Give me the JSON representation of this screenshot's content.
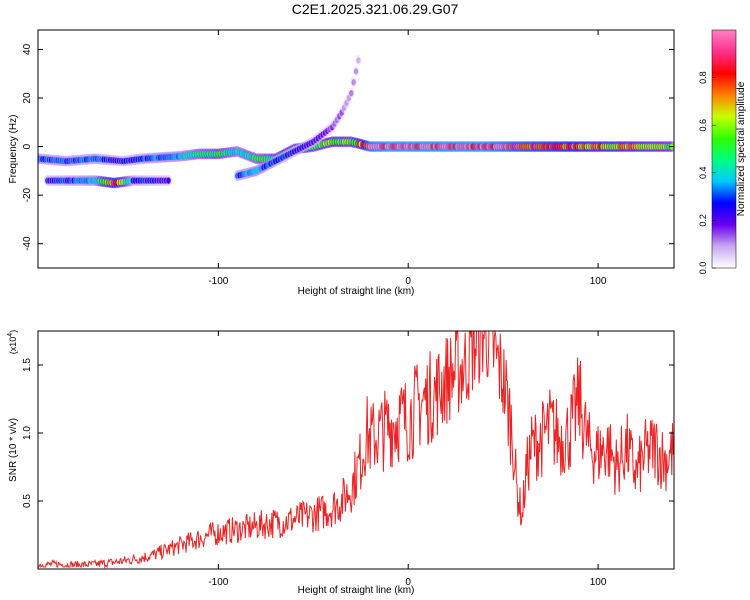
{
  "title": "C2E1.2025.321.06.29.G07",
  "colors": {
    "snr_line": "#ee2222",
    "axis": "#000000",
    "background": "#ffffff"
  },
  "chart_data": [
    {
      "type": "heatmap",
      "name": "spectrogram",
      "title": "C2E1.2025.321.06.29.G07",
      "xlabel": "Height of straight line (km)",
      "ylabel": "Frequency (Hz)",
      "xlim": [
        -195,
        140
      ],
      "ylim": [
        -50,
        48
      ],
      "xticks": [
        -100,
        0,
        100
      ],
      "xtick_labels": [
        "-100",
        "0",
        "100"
      ],
      "yticks": [
        -40,
        -20,
        0,
        20,
        40
      ],
      "ytick_labels": [
        "-40",
        "-20",
        "0",
        "20",
        "40"
      ],
      "colorbar": {
        "label": "Normalized spectral amplitude",
        "range": [
          0,
          1
        ],
        "ticks": [
          0.0,
          0.2,
          0.4,
          0.6,
          0.8
        ],
        "tick_labels": [
          "0.0",
          "0.2",
          "0.4",
          "0.6",
          "0.8"
        ],
        "colormap": [
          "#ffffff",
          "#c8a8f0",
          "#6a00f0",
          "#0000ff",
          "#00c8ff",
          "#00ff80",
          "#30ff00",
          "#c8ff00",
          "#ff8000",
          "#ff0000",
          "#ff3090",
          "#ff80c0"
        ]
      },
      "tracks": [
        {
          "name": "main-track",
          "x": [
            -195,
            -180,
            -165,
            -150,
            -140,
            -120,
            -110,
            -100,
            -90,
            -80,
            -70,
            -60,
            -50,
            -40,
            -30,
            -20,
            -10,
            0,
            20,
            40,
            60,
            80,
            100,
            120,
            140
          ],
          "y": [
            -5,
            -6,
            -5,
            -6,
            -5,
            -4,
            -3,
            -3,
            -2,
            -5,
            -5,
            -1,
            0,
            2,
            2,
            0,
            0,
            0,
            0,
            0,
            0,
            0,
            0,
            0,
            0
          ],
          "amplitude": [
            0.3,
            0.3,
            0.3,
            0.25,
            0.3,
            0.35,
            0.45,
            0.5,
            0.4,
            0.45,
            0.5,
            0.55,
            0.5,
            0.6,
            0.55,
            0.9,
            0.95,
            0.95,
            0.95,
            0.95,
            0.85,
            0.8,
            0.7,
            0.65,
            0.5
          ]
        },
        {
          "name": "lower-track",
          "x": [
            -190,
            -175,
            -165,
            -155,
            -145,
            -135,
            -125
          ],
          "y": [
            -14,
            -14,
            -14,
            -15,
            -14,
            -14,
            -14
          ],
          "amplitude": [
            0.25,
            0.3,
            0.35,
            0.8,
            0.3,
            0.25,
            0.2
          ]
        },
        {
          "name": "rising-track",
          "x": [
            -90,
            -80,
            -70,
            -60,
            -50,
            -40,
            -35,
            -30,
            -25
          ],
          "y": [
            -12,
            -10,
            -6,
            -2,
            2,
            8,
            14,
            22,
            40
          ],
          "amplitude": [
            0.3,
            0.35,
            0.3,
            0.25,
            0.2,
            0.15,
            0.12,
            0.1,
            0.08
          ]
        }
      ]
    },
    {
      "type": "line",
      "name": "snr",
      "xlabel": "Height of straight line (km)",
      "ylabel": "SNR (10 * v/v)",
      "y_multiplier": "(x10",
      "y_multiplier_exp": "4",
      "y_multiplier_close": ")",
      "xlim": [
        -195,
        140
      ],
      "ylim": [
        0,
        17500
      ],
      "xticks": [
        -100,
        0,
        100
      ],
      "xtick_labels": [
        "-100",
        "0",
        "100"
      ],
      "yticks": [
        5000,
        10000,
        15000
      ],
      "ytick_labels": [
        "0.5",
        "1.0",
        "1.5"
      ],
      "series": [
        {
          "name": "SNR",
          "x": [
            -195,
            -185,
            -175,
            -165,
            -155,
            -145,
            -135,
            -125,
            -115,
            -105,
            -95,
            -85,
            -75,
            -65,
            -55,
            -45,
            -40,
            -35,
            -30,
            -25,
            -22,
            -20,
            -15,
            -10,
            -5,
            0,
            5,
            10,
            15,
            20,
            25,
            30,
            35,
            40,
            42,
            45,
            50,
            55,
            57,
            60,
            62,
            65,
            70,
            75,
            80,
            85,
            90,
            95,
            100,
            105,
            110,
            115,
            120,
            125,
            130,
            135,
            140
          ],
          "values": [
            300,
            350,
            300,
            350,
            500,
            700,
            1000,
            1500,
            2000,
            2500,
            2800,
            3000,
            3300,
            3500,
            3800,
            4200,
            4500,
            5000,
            6000,
            8000,
            10000,
            9500,
            10000,
            10500,
            11000,
            11000,
            12000,
            12500,
            13000,
            14000,
            14500,
            15000,
            16500,
            17300,
            17000,
            16000,
            14000,
            10000,
            6000,
            3800,
            7000,
            9000,
            9500,
            10500,
            9500,
            10000,
            12500,
            9000,
            8500,
            9000,
            7500,
            9000,
            7000,
            8500,
            9000,
            8000,
            8700
          ]
        }
      ]
    }
  ]
}
